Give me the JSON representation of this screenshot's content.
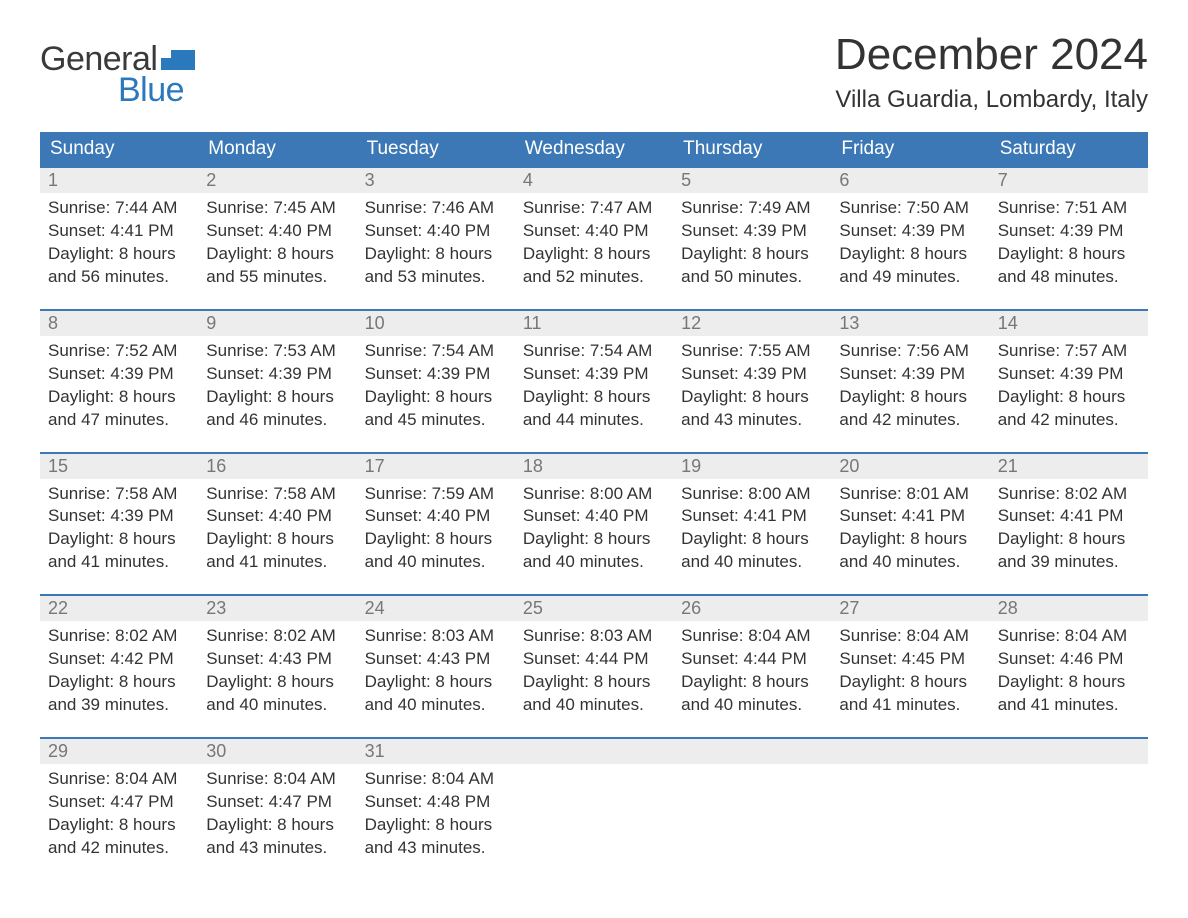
{
  "logo": {
    "word1": "General",
    "word2": "Blue",
    "shape_color": "#2b79bd",
    "word1_color": "#3a3a3a"
  },
  "title": "December 2024",
  "location": "Villa Guardia, Lombardy, Italy",
  "colors": {
    "header_bg": "#3b78b5",
    "header_text": "#ffffff",
    "daynum_bg": "#ededed",
    "daynum_border": "#3b78b5",
    "daynum_text": "#777777",
    "body_text": "#333333",
    "page_bg": "#ffffff"
  },
  "day_names": [
    "Sunday",
    "Monday",
    "Tuesday",
    "Wednesday",
    "Thursday",
    "Friday",
    "Saturday"
  ],
  "labels": {
    "sunrise": "Sunrise:",
    "sunset": "Sunset:",
    "daylight": "Daylight:"
  },
  "weeks": [
    [
      {
        "n": "1",
        "sunrise": "7:44 AM",
        "sunset": "4:41 PM",
        "dl1": "8 hours",
        "dl2": "and 56 minutes."
      },
      {
        "n": "2",
        "sunrise": "7:45 AM",
        "sunset": "4:40 PM",
        "dl1": "8 hours",
        "dl2": "and 55 minutes."
      },
      {
        "n": "3",
        "sunrise": "7:46 AM",
        "sunset": "4:40 PM",
        "dl1": "8 hours",
        "dl2": "and 53 minutes."
      },
      {
        "n": "4",
        "sunrise": "7:47 AM",
        "sunset": "4:40 PM",
        "dl1": "8 hours",
        "dl2": "and 52 minutes."
      },
      {
        "n": "5",
        "sunrise": "7:49 AM",
        "sunset": "4:39 PM",
        "dl1": "8 hours",
        "dl2": "and 50 minutes."
      },
      {
        "n": "6",
        "sunrise": "7:50 AM",
        "sunset": "4:39 PM",
        "dl1": "8 hours",
        "dl2": "and 49 minutes."
      },
      {
        "n": "7",
        "sunrise": "7:51 AM",
        "sunset": "4:39 PM",
        "dl1": "8 hours",
        "dl2": "and 48 minutes."
      }
    ],
    [
      {
        "n": "8",
        "sunrise": "7:52 AM",
        "sunset": "4:39 PM",
        "dl1": "8 hours",
        "dl2": "and 47 minutes."
      },
      {
        "n": "9",
        "sunrise": "7:53 AM",
        "sunset": "4:39 PM",
        "dl1": "8 hours",
        "dl2": "and 46 minutes."
      },
      {
        "n": "10",
        "sunrise": "7:54 AM",
        "sunset": "4:39 PM",
        "dl1": "8 hours",
        "dl2": "and 45 minutes."
      },
      {
        "n": "11",
        "sunrise": "7:54 AM",
        "sunset": "4:39 PM",
        "dl1": "8 hours",
        "dl2": "and 44 minutes."
      },
      {
        "n": "12",
        "sunrise": "7:55 AM",
        "sunset": "4:39 PM",
        "dl1": "8 hours",
        "dl2": "and 43 minutes."
      },
      {
        "n": "13",
        "sunrise": "7:56 AM",
        "sunset": "4:39 PM",
        "dl1": "8 hours",
        "dl2": "and 42 minutes."
      },
      {
        "n": "14",
        "sunrise": "7:57 AM",
        "sunset": "4:39 PM",
        "dl1": "8 hours",
        "dl2": "and 42 minutes."
      }
    ],
    [
      {
        "n": "15",
        "sunrise": "7:58 AM",
        "sunset": "4:39 PM",
        "dl1": "8 hours",
        "dl2": "and 41 minutes."
      },
      {
        "n": "16",
        "sunrise": "7:58 AM",
        "sunset": "4:40 PM",
        "dl1": "8 hours",
        "dl2": "and 41 minutes."
      },
      {
        "n": "17",
        "sunrise": "7:59 AM",
        "sunset": "4:40 PM",
        "dl1": "8 hours",
        "dl2": "and 40 minutes."
      },
      {
        "n": "18",
        "sunrise": "8:00 AM",
        "sunset": "4:40 PM",
        "dl1": "8 hours",
        "dl2": "and 40 minutes."
      },
      {
        "n": "19",
        "sunrise": "8:00 AM",
        "sunset": "4:41 PM",
        "dl1": "8 hours",
        "dl2": "and 40 minutes."
      },
      {
        "n": "20",
        "sunrise": "8:01 AM",
        "sunset": "4:41 PM",
        "dl1": "8 hours",
        "dl2": "and 40 minutes."
      },
      {
        "n": "21",
        "sunrise": "8:02 AM",
        "sunset": "4:41 PM",
        "dl1": "8 hours",
        "dl2": "and 39 minutes."
      }
    ],
    [
      {
        "n": "22",
        "sunrise": "8:02 AM",
        "sunset": "4:42 PM",
        "dl1": "8 hours",
        "dl2": "and 39 minutes."
      },
      {
        "n": "23",
        "sunrise": "8:02 AM",
        "sunset": "4:43 PM",
        "dl1": "8 hours",
        "dl2": "and 40 minutes."
      },
      {
        "n": "24",
        "sunrise": "8:03 AM",
        "sunset": "4:43 PM",
        "dl1": "8 hours",
        "dl2": "and 40 minutes."
      },
      {
        "n": "25",
        "sunrise": "8:03 AM",
        "sunset": "4:44 PM",
        "dl1": "8 hours",
        "dl2": "and 40 minutes."
      },
      {
        "n": "26",
        "sunrise": "8:04 AM",
        "sunset": "4:44 PM",
        "dl1": "8 hours",
        "dl2": "and 40 minutes."
      },
      {
        "n": "27",
        "sunrise": "8:04 AM",
        "sunset": "4:45 PM",
        "dl1": "8 hours",
        "dl2": "and 41 minutes."
      },
      {
        "n": "28",
        "sunrise": "8:04 AM",
        "sunset": "4:46 PM",
        "dl1": "8 hours",
        "dl2": "and 41 minutes."
      }
    ],
    [
      {
        "n": "29",
        "sunrise": "8:04 AM",
        "sunset": "4:47 PM",
        "dl1": "8 hours",
        "dl2": "and 42 minutes."
      },
      {
        "n": "30",
        "sunrise": "8:04 AM",
        "sunset": "4:47 PM",
        "dl1": "8 hours",
        "dl2": "and 43 minutes."
      },
      {
        "n": "31",
        "sunrise": "8:04 AM",
        "sunset": "4:48 PM",
        "dl1": "8 hours",
        "dl2": "and 43 minutes."
      },
      null,
      null,
      null,
      null
    ]
  ]
}
